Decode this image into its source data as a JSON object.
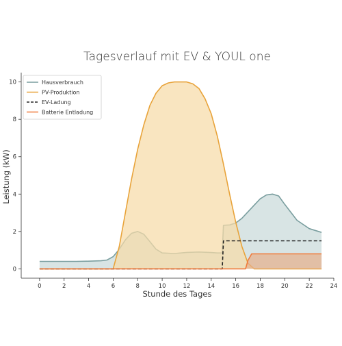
{
  "chart_data": {
    "type": "area",
    "title": "Tagesverlauf mit EV & YOUL one",
    "xlabel": "Stunde des Tages",
    "ylabel": "Leistung (kW)",
    "xlim": [
      -1.5,
      24
    ],
    "ylim": [
      -0.5,
      10.5
    ],
    "x_ticks": [
      0,
      2,
      4,
      6,
      8,
      10,
      12,
      14,
      16,
      18,
      20,
      22,
      24
    ],
    "y_ticks": [
      0,
      2,
      4,
      6,
      8,
      10
    ],
    "grid": false,
    "legend_position": "top-left",
    "series": [
      {
        "name": "Hausverbrauch",
        "style": "area-line",
        "color": "#7a9e9f",
        "fill": "#c9d9da",
        "x": [
          0,
          1,
          2,
          3,
          4,
          5,
          5.5,
          6,
          6.5,
          7,
          7.5,
          8,
          8.5,
          9,
          9.5,
          10,
          11,
          12,
          13,
          14,
          14.5,
          14.9,
          15,
          15.5,
          16,
          16.5,
          17,
          17.5,
          18,
          18.5,
          19,
          19.5,
          20,
          21,
          22,
          23
        ],
        "y": [
          0.4,
          0.4,
          0.4,
          0.4,
          0.41,
          0.43,
          0.47,
          0.65,
          1.05,
          1.55,
          1.9,
          2.0,
          1.85,
          1.45,
          1.05,
          0.85,
          0.82,
          0.88,
          0.9,
          0.87,
          0.85,
          0.85,
          2.33,
          2.35,
          2.45,
          2.7,
          3.05,
          3.4,
          3.75,
          3.95,
          4.0,
          3.9,
          3.45,
          2.6,
          2.15,
          1.95
        ]
      },
      {
        "name": "PV-Produktion",
        "style": "area-line",
        "color": "#e8a33a",
        "fill": "#f7dba8",
        "x": [
          0,
          6,
          6.5,
          7,
          7.5,
          8,
          8.5,
          9,
          9.5,
          10,
          10.5,
          11,
          11.5,
          12,
          12.5,
          13,
          13.5,
          14,
          14.5,
          15,
          15.5,
          16,
          16.5,
          17,
          17.5,
          18,
          23
        ],
        "y": [
          0,
          0,
          1.2,
          3.0,
          4.8,
          6.4,
          7.7,
          8.75,
          9.4,
          9.8,
          9.95,
          10.0,
          10.0,
          10.0,
          9.9,
          9.65,
          9.1,
          8.3,
          7.1,
          5.6,
          4.0,
          2.5,
          1.2,
          0.3,
          0,
          0,
          0
        ]
      },
      {
        "name": "EV-Ladung",
        "style": "dashed-line",
        "color": "#222222",
        "x": [
          0,
          14.9,
          15,
          23
        ],
        "y": [
          0,
          0,
          1.5,
          1.5
        ]
      },
      {
        "name": "Batterie Entladung",
        "style": "area-line",
        "color": "#f07a3c",
        "fill": "#e6b08c",
        "x": [
          0,
          16.8,
          17,
          17.3,
          23
        ],
        "y": [
          0,
          0,
          0.45,
          0.8,
          0.8
        ]
      }
    ]
  }
}
